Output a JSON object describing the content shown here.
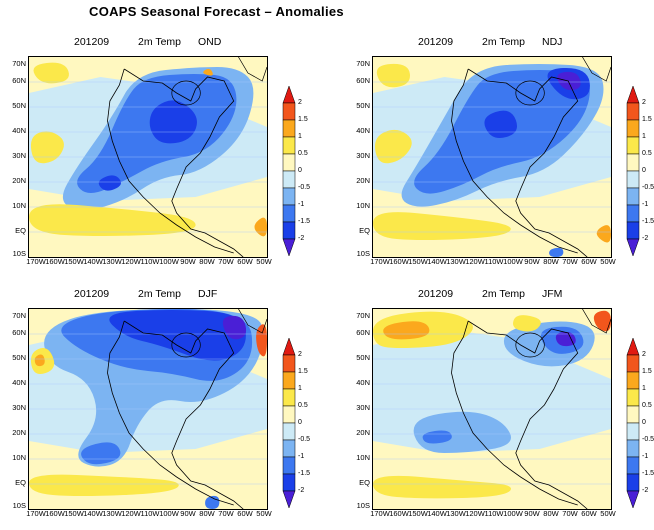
{
  "title": "COAPS Seasonal Forecast – Anomalies",
  "palette": {
    "-2": "#4a1fd6",
    "-1.5": "#1a3fe8",
    "-1": "#3d78f0",
    "-0.5": "#7cb4f2",
    "0": "#cdeaf6",
    "0.5": "#fff8c0",
    "1": "#fbe84a",
    "1.5": "#fba81d",
    "2": "#f2561c",
    "2.5": "#e01a12"
  },
  "colorbar": {
    "labels": [
      "2",
      "1.5",
      "1",
      "0.5",
      "0",
      "-0.5",
      "-1",
      "-1.5",
      "-2"
    ]
  },
  "axes": {
    "lat_labels": [
      "70N",
      "60N",
      "50N",
      "40N",
      "30N",
      "20N",
      "10N",
      "EQ",
      "10S"
    ],
    "lon_labels": [
      "170W",
      "160W",
      "150W",
      "140W",
      "130W",
      "120W",
      "110W",
      "100W",
      "90W",
      "80W",
      "70W",
      "60W",
      "50W"
    ]
  },
  "panels": [
    {
      "init": "201209",
      "variable": "2m Temp",
      "season": "OND",
      "features": [
        {
          "level": -0.5,
          "shape": [
            [
              0.35,
              0.3
            ],
            [
              0.45,
              0.08
            ],
            [
              0.7,
              0.05
            ],
            [
              0.88,
              0.05
            ],
            [
              0.96,
              0.15
            ],
            [
              0.9,
              0.4
            ],
            [
              0.72,
              0.58
            ],
            [
              0.55,
              0.6
            ],
            [
              0.4,
              0.72
            ],
            [
              0.22,
              0.78
            ],
            [
              0.12,
              0.72
            ],
            [
              0.2,
              0.55
            ]
          ]
        },
        {
          "level": -1,
          "shape": [
            [
              0.4,
              0.22
            ],
            [
              0.48,
              0.1
            ],
            [
              0.7,
              0.08
            ],
            [
              0.86,
              0.1
            ],
            [
              0.88,
              0.28
            ],
            [
              0.75,
              0.48
            ],
            [
              0.55,
              0.52
            ],
            [
              0.4,
              0.62
            ],
            [
              0.25,
              0.7
            ],
            [
              0.18,
              0.62
            ],
            [
              0.3,
              0.5
            ]
          ]
        },
        {
          "level": -1.5,
          "shape": [
            [
              0.52,
              0.25
            ],
            [
              0.62,
              0.2
            ],
            [
              0.72,
              0.3
            ],
            [
              0.68,
              0.42
            ],
            [
              0.55,
              0.44
            ],
            [
              0.5,
              0.35
            ]
          ]
        },
        {
          "level": -1.5,
          "shape": [
            [
              0.28,
              0.62
            ],
            [
              0.36,
              0.58
            ],
            [
              0.4,
              0.64
            ],
            [
              0.32,
              0.68
            ]
          ]
        },
        {
          "level": 1,
          "shape": [
            [
              0.0,
              0.4
            ],
            [
              0.08,
              0.36
            ],
            [
              0.16,
              0.42
            ],
            [
              0.12,
              0.52
            ],
            [
              0.02,
              0.54
            ]
          ]
        },
        {
          "level": 1,
          "shape": [
            [
              0.0,
              0.72
            ],
            [
              0.4,
              0.76
            ],
            [
              0.7,
              0.8
            ],
            [
              0.7,
              0.88
            ],
            [
              0.3,
              0.9
            ],
            [
              0.0,
              0.88
            ]
          ]
        },
        {
          "level": 1,
          "shape": [
            [
              0.0,
              0.04
            ],
            [
              0.15,
              0.02
            ],
            [
              0.18,
              0.12
            ],
            [
              0.05,
              0.14
            ]
          ]
        },
        {
          "level": 1.5,
          "shape": [
            [
              0.93,
              0.85
            ],
            [
              1.0,
              0.78
            ],
            [
              1.0,
              0.92
            ]
          ]
        },
        {
          "level": 1.5,
          "shape": [
            [
              0.72,
              0.08
            ],
            [
              0.76,
              0.05
            ],
            [
              0.78,
              0.1
            ]
          ]
        }
      ]
    },
    {
      "init": "201209",
      "variable": "2m Temp",
      "season": "NDJ",
      "features": [
        {
          "level": -0.5,
          "shape": [
            [
              0.3,
              0.3
            ],
            [
              0.42,
              0.05
            ],
            [
              0.7,
              0.03
            ],
            [
              0.95,
              0.05
            ],
            [
              0.98,
              0.2
            ],
            [
              0.88,
              0.4
            ],
            [
              0.72,
              0.58
            ],
            [
              0.52,
              0.62
            ],
            [
              0.35,
              0.72
            ],
            [
              0.18,
              0.76
            ],
            [
              0.1,
              0.7
            ],
            [
              0.18,
              0.55
            ]
          ]
        },
        {
          "level": -1,
          "shape": [
            [
              0.4,
              0.2
            ],
            [
              0.48,
              0.08
            ],
            [
              0.7,
              0.06
            ],
            [
              0.92,
              0.08
            ],
            [
              0.9,
              0.3
            ],
            [
              0.72,
              0.5
            ],
            [
              0.52,
              0.55
            ],
            [
              0.38,
              0.64
            ],
            [
              0.22,
              0.7
            ],
            [
              0.15,
              0.62
            ],
            [
              0.28,
              0.48
            ]
          ]
        },
        {
          "level": -1.5,
          "shape": [
            [
              0.7,
              0.06
            ],
            [
              0.9,
              0.05
            ],
            [
              0.92,
              0.2
            ],
            [
              0.8,
              0.22
            ]
          ]
        },
        {
          "level": -2,
          "shape": [
            [
              0.76,
              0.08
            ],
            [
              0.86,
              0.07
            ],
            [
              0.88,
              0.16
            ],
            [
              0.8,
              0.17
            ]
          ]
        },
        {
          "level": -1.5,
          "shape": [
            [
              0.45,
              0.3
            ],
            [
              0.58,
              0.25
            ],
            [
              0.62,
              0.38
            ],
            [
              0.5,
              0.42
            ]
          ]
        },
        {
          "level": 1,
          "shape": [
            [
              0.0,
              0.4
            ],
            [
              0.1,
              0.35
            ],
            [
              0.18,
              0.42
            ],
            [
              0.12,
              0.52
            ],
            [
              0.02,
              0.54
            ]
          ]
        },
        {
          "level": 1,
          "shape": [
            [
              0.0,
              0.76
            ],
            [
              0.35,
              0.8
            ],
            [
              0.6,
              0.84
            ],
            [
              0.55,
              0.9
            ],
            [
              0.2,
              0.92
            ],
            [
              0.0,
              0.9
            ]
          ]
        },
        {
          "level": 1,
          "shape": [
            [
              0.0,
              0.04
            ],
            [
              0.15,
              0.03
            ],
            [
              0.16,
              0.14
            ],
            [
              0.04,
              0.16
            ]
          ]
        },
        {
          "level": 1.5,
          "shape": [
            [
              0.92,
              0.88
            ],
            [
              1.0,
              0.82
            ],
            [
              1.0,
              0.95
            ]
          ]
        },
        {
          "level": -1,
          "shape": [
            [
              0.74,
              0.96
            ],
            [
              0.8,
              0.95
            ],
            [
              0.8,
              1.0
            ],
            [
              0.74,
              1.0
            ]
          ]
        }
      ]
    },
    {
      "init": "201209",
      "variable": "2m Temp",
      "season": "DJF",
      "features": [
        {
          "level": -0.5,
          "shape": [
            [
              0.05,
              0.1
            ],
            [
              0.3,
              0.0
            ],
            [
              0.95,
              0.0
            ],
            [
              1.0,
              0.15
            ],
            [
              0.92,
              0.36
            ],
            [
              0.72,
              0.48
            ],
            [
              0.55,
              0.44
            ],
            [
              0.45,
              0.58
            ],
            [
              0.4,
              0.76
            ],
            [
              0.28,
              0.8
            ],
            [
              0.18,
              0.74
            ],
            [
              0.3,
              0.55
            ],
            [
              0.25,
              0.35
            ],
            [
              0.08,
              0.28
            ]
          ]
        },
        {
          "level": -1,
          "shape": [
            [
              0.1,
              0.08
            ],
            [
              0.35,
              0.0
            ],
            [
              0.92,
              0.0
            ],
            [
              0.95,
              0.25
            ],
            [
              0.8,
              0.38
            ],
            [
              0.6,
              0.32
            ],
            [
              0.4,
              0.3
            ],
            [
              0.2,
              0.2
            ]
          ]
        },
        {
          "level": -1.5,
          "shape": [
            [
              0.3,
              0.02
            ],
            [
              0.6,
              0.0
            ],
            [
              0.9,
              0.02
            ],
            [
              0.92,
              0.2
            ],
            [
              0.78,
              0.28
            ],
            [
              0.55,
              0.18
            ],
            [
              0.4,
              0.14
            ]
          ]
        },
        {
          "level": -2,
          "shape": [
            [
              0.8,
              0.04
            ],
            [
              0.9,
              0.03
            ],
            [
              0.92,
              0.14
            ],
            [
              0.84,
              0.16
            ]
          ]
        },
        {
          "level": -1,
          "shape": [
            [
              0.2,
              0.7
            ],
            [
              0.36,
              0.65
            ],
            [
              0.4,
              0.75
            ],
            [
              0.25,
              0.79
            ]
          ]
        },
        {
          "level": 1,
          "shape": [
            [
              0.0,
              0.22
            ],
            [
              0.08,
              0.18
            ],
            [
              0.12,
              0.3
            ],
            [
              0.02,
              0.34
            ]
          ]
        },
        {
          "level": 1.5,
          "shape": [
            [
              0.02,
              0.24
            ],
            [
              0.06,
              0.22
            ],
            [
              0.07,
              0.28
            ],
            [
              0.03,
              0.29
            ]
          ]
        },
        {
          "level": 1,
          "shape": [
            [
              0.0,
              0.82
            ],
            [
              0.4,
              0.84
            ],
            [
              0.65,
              0.86
            ],
            [
              0.6,
              0.92
            ],
            [
              0.2,
              0.94
            ],
            [
              0.0,
              0.92
            ]
          ]
        },
        {
          "level": 2,
          "shape": [
            [
              0.95,
              0.1
            ],
            [
              1.0,
              0.06
            ],
            [
              1.0,
              0.25
            ],
            [
              0.96,
              0.22
            ]
          ]
        },
        {
          "level": -1,
          "shape": [
            [
              0.74,
              0.94
            ],
            [
              0.8,
              0.93
            ],
            [
              0.8,
              1.0
            ],
            [
              0.74,
              1.0
            ]
          ]
        }
      ]
    },
    {
      "init": "201209",
      "variable": "2m Temp",
      "season": "JFM",
      "features": [
        {
          "level": -0.5,
          "shape": [
            [
              0.15,
              0.55
            ],
            [
              0.4,
              0.5
            ],
            [
              0.55,
              0.56
            ],
            [
              0.6,
              0.68
            ],
            [
              0.4,
              0.72
            ],
            [
              0.2,
              0.72
            ]
          ]
        },
        {
          "level": -1,
          "shape": [
            [
              0.2,
              0.62
            ],
            [
              0.32,
              0.6
            ],
            [
              0.34,
              0.66
            ],
            [
              0.22,
              0.68
            ]
          ]
        },
        {
          "level": -0.5,
          "shape": [
            [
              0.55,
              0.1
            ],
            [
              0.8,
              0.05
            ],
            [
              0.95,
              0.1
            ],
            [
              0.9,
              0.26
            ],
            [
              0.72,
              0.3
            ],
            [
              0.55,
              0.22
            ]
          ]
        },
        {
          "level": -1,
          "shape": [
            [
              0.68,
              0.1
            ],
            [
              0.86,
              0.08
            ],
            [
              0.9,
              0.2
            ],
            [
              0.75,
              0.24
            ]
          ]
        },
        {
          "level": -2,
          "shape": [
            [
              0.76,
              0.12
            ],
            [
              0.84,
              0.11
            ],
            [
              0.86,
              0.18
            ],
            [
              0.78,
              0.19
            ]
          ]
        },
        {
          "level": 1,
          "shape": [
            [
              0.0,
              0.04
            ],
            [
              0.3,
              0.0
            ],
            [
              0.45,
              0.08
            ],
            [
              0.35,
              0.18
            ],
            [
              0.1,
              0.2
            ],
            [
              0.0,
              0.18
            ]
          ]
        },
        {
          "level": 1.5,
          "shape": [
            [
              0.03,
              0.08
            ],
            [
              0.22,
              0.05
            ],
            [
              0.25,
              0.14
            ],
            [
              0.06,
              0.16
            ]
          ]
        },
        {
          "level": 1,
          "shape": [
            [
              0.6,
              0.02
            ],
            [
              0.72,
              0.05
            ],
            [
              0.68,
              0.12
            ],
            [
              0.58,
              0.1
            ]
          ]
        },
        {
          "level": 2,
          "shape": [
            [
              0.92,
              0.02
            ],
            [
              1.0,
              0.0
            ],
            [
              1.0,
              0.12
            ],
            [
              0.94,
              0.1
            ]
          ]
        },
        {
          "level": 1,
          "shape": [
            [
              0.0,
              0.82
            ],
            [
              0.4,
              0.86
            ],
            [
              0.6,
              0.88
            ],
            [
              0.55,
              0.94
            ],
            [
              0.2,
              0.95
            ],
            [
              0.0,
              0.93
            ]
          ]
        }
      ]
    }
  ]
}
